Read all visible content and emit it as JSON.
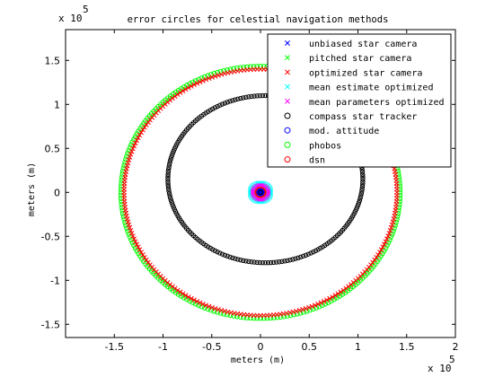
{
  "chart_data": {
    "type": "scatter",
    "title": "error circles for celestial navigation methods",
    "xlabel": "meters (m)",
    "ylabel": "meters (m)",
    "x_exponent_label": "x 10",
    "x_exponent_power": "5",
    "y_exponent_label": "x 10",
    "y_exponent_power": "5",
    "xlim": [
      -2.0,
      2.0
    ],
    "ylim": [
      -1.65,
      1.85
    ],
    "scale": "x 10^5 m",
    "x_ticks": [
      -1.5,
      -1,
      -0.5,
      0,
      0.5,
      1,
      1.5,
      2
    ],
    "x_tick_labels": [
      "-1.5",
      "-1",
      "-0.5",
      "0",
      "0.5",
      "1",
      "1.5",
      "2"
    ],
    "y_ticks": [
      -1.5,
      -1,
      -0.5,
      0,
      0.5,
      1,
      1.5
    ],
    "y_tick_labels": [
      "-1.5",
      "-1",
      "-0.5",
      "0",
      "0.5",
      "1",
      "1.5"
    ],
    "grid": false,
    "legend_position": "top-right",
    "series": [
      {
        "name": "unbiased star camera",
        "marker": "x",
        "color": "#0000ff",
        "center": [
          0,
          0
        ],
        "radius": 0.03
      },
      {
        "name": "pitched star camera",
        "marker": "x",
        "color": "#00ff00",
        "center": [
          0,
          0
        ],
        "radius": 0.05
      },
      {
        "name": "optimized star camera",
        "marker": "x",
        "color": "#ff0000",
        "center": [
          0,
          0
        ],
        "radius": 1.4
      },
      {
        "name": "mean estimate optimized",
        "marker": "x",
        "color": "#00ffff",
        "center": [
          0,
          0
        ],
        "radius": 0.1
      },
      {
        "name": "mean parameters optimized",
        "marker": "x",
        "color": "#ff00ff",
        "center": [
          0,
          0
        ],
        "radius": 0.08
      },
      {
        "name": "compass star tracker",
        "marker": "o",
        "color": "#000000",
        "center": [
          0.05,
          0.15
        ],
        "radius": 1.0,
        "ry": 0.95
      },
      {
        "name": "mod. attitude",
        "marker": "o",
        "color": "#0000ff",
        "center": [
          0,
          0
        ],
        "radius": 0.02
      },
      {
        "name": "phobos",
        "marker": "o",
        "color": "#00ff00",
        "center": [
          0,
          0
        ],
        "radius": 1.43
      },
      {
        "name": "dsn",
        "marker": "o",
        "color": "#ff0000",
        "center": [
          0,
          0
        ],
        "radius": 0.035
      }
    ]
  }
}
